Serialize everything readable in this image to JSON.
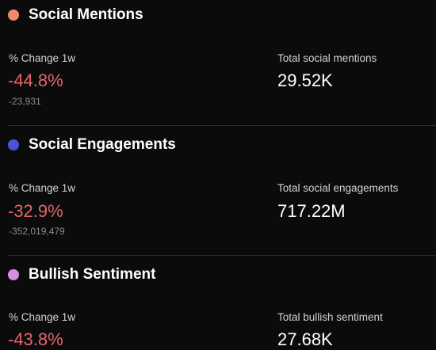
{
  "sections": [
    {
      "title": "Social Mentions",
      "dot_color": "#ee8c6a",
      "change_label": "% Change 1w",
      "change_pct": "-44.8%",
      "change_abs": "-23,931",
      "total_label": "Total social mentions",
      "total_value": "29.52K"
    },
    {
      "title": "Social Engagements",
      "dot_color": "#4a55d6",
      "change_label": "% Change 1w",
      "change_pct": "-32.9%",
      "change_abs": "-352,019,479",
      "total_label": "Total social engagements",
      "total_value": "717.22M"
    },
    {
      "title": "Bullish Sentiment",
      "dot_color": "#d98ce0",
      "change_label": "% Change 1w",
      "change_pct": "-43.8%",
      "total_label": "Total bullish sentiment",
      "total_value": "27.68K"
    }
  ],
  "colors": {
    "background": "#0b0b0b",
    "negative": "#e8646b",
    "divider": "#2b2b2b"
  }
}
